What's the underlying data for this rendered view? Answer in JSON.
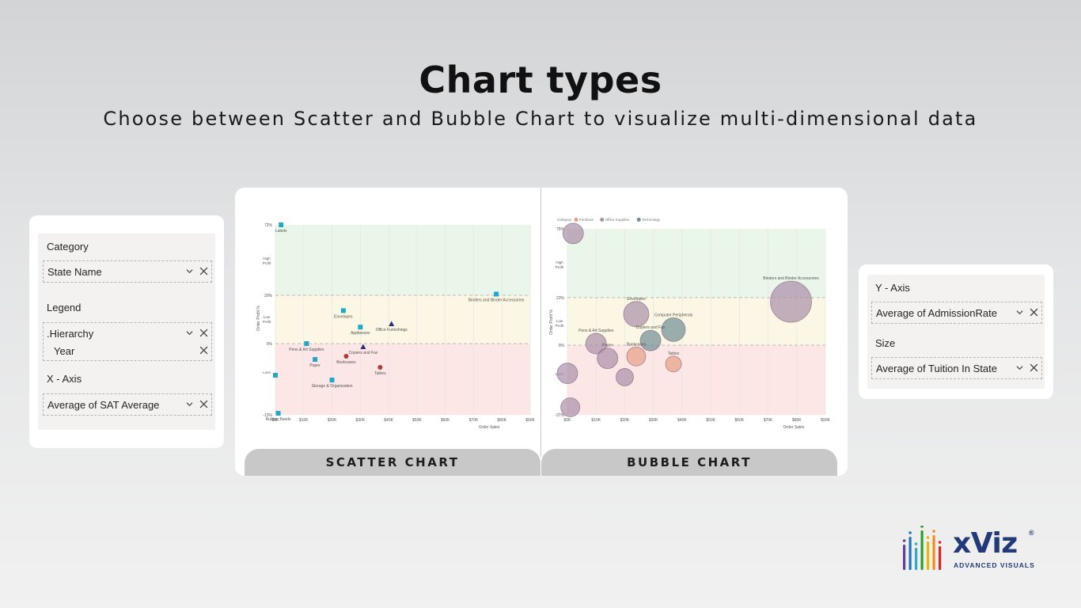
{
  "header": {
    "title": "Chart types",
    "subtitle": "Choose between Scatter and Bubble Chart to visualize multi-dimensional data"
  },
  "left_pane": {
    "category_label": "Category",
    "category_field": "State Name",
    "legend_label": "Legend",
    "legend_fields": [
      ".Hierarchy",
      "Year"
    ],
    "xaxis_label": "X - Axis",
    "xaxis_field": "Average of SAT Average"
  },
  "right_pane": {
    "yaxis_label": "Y - Axis",
    "yaxis_field": "Average of AdmissionRate",
    "size_label": "Size",
    "size_field": "Average of Tuition In State"
  },
  "tabs": {
    "scatter": "SCATTER CHART",
    "bubble": "BUBBLE CHART"
  },
  "logo": {
    "name": "xViz",
    "registered": "®",
    "tagline": "ADVANCED VISUALS",
    "bar_colors": [
      "#6a3d9a",
      "#1f78b4",
      "#33a9c7",
      "#2ca02c",
      "#e6b800",
      "#f08a24",
      "#d62728"
    ]
  },
  "chart_data": [
    {
      "type": "scatter",
      "xlabel": "Order Sales",
      "ylabel": "Order Profit %",
      "x_ticks": [
        "$0K",
        "$10K",
        "$20K",
        "$30K",
        "$40K",
        "$50K",
        "$60K",
        "$70K",
        "$80K",
        "$90K"
      ],
      "y_ticks": [
        "72%",
        "20%",
        "0%",
        "-13%"
      ],
      "bands": [
        "High Profit",
        "Low Profit",
        "Loss"
      ],
      "band_colors": [
        "#eaf6ea",
        "#fbf7e4",
        "#fde6e6"
      ],
      "series": [
        {
          "color": "#1fa8c7",
          "shape": "square",
          "points": [
            {
              "label": "Labels",
              "x": 2,
              "y": 72
            },
            {
              "label": "Envelopes",
              "x": 24,
              "y": 20
            },
            {
              "label": "Appliances",
              "x": 30,
              "y": 10
            },
            {
              "label": "Binders and Binder Accessories",
              "x": 78,
              "y": 30
            },
            {
              "label": "Pens & Art Supplies",
              "x": 11,
              "y": 0
            },
            {
              "label": "Paper",
              "x": 14,
              "y": -10
            },
            {
              "label": "Storage & Organization",
              "x": 20,
              "y": -23
            },
            {
              "label": "",
              "x": 0,
              "y": -20
            },
            {
              "label": "Rubber Bands",
              "x": 1,
              "y": -44
            }
          ]
        },
        {
          "color": "#2b2f7a",
          "shape": "triangle",
          "points": [
            {
              "label": "Copiers and Fax",
              "x": 31,
              "y": -2
            },
            {
              "label": "Office Furnishings",
              "x": 41,
              "y": 12
            }
          ]
        },
        {
          "color": "#b03a3a",
          "shape": "circle",
          "points": [
            {
              "label": "Bookcases",
              "x": 25,
              "y": -8
            },
            {
              "label": "Tables",
              "x": 37,
              "y": -15
            }
          ]
        }
      ]
    },
    {
      "type": "bubble",
      "legend_title": "Category",
      "legend": [
        "Furniture",
        "Office Supplies",
        "Technology"
      ],
      "legend_colors": [
        "#e3a083",
        "#a98ea8",
        "#6f8d96"
      ],
      "xlabel": "Order Sales",
      "ylabel": "Order Profit %",
      "x_ticks": [
        "$0K",
        "$10K",
        "$20K",
        "$30K",
        "$40K",
        "$50K",
        "$60K",
        "$70K",
        "$80K",
        "$90K"
      ],
      "y_ticks": [
        "75%",
        "23%",
        "0%",
        "-37%"
      ],
      "bands": [
        "High Profit",
        "Low Profit",
        "Loss"
      ],
      "bubbles": [
        {
          "label": "Binders and Binder Accessories",
          "x": 78,
          "y": 28,
          "size": 52,
          "category": "Office Supplies"
        },
        {
          "label": "Envelopes",
          "x": 24,
          "y": 20,
          "size": 32,
          "category": "Office Supplies"
        },
        {
          "label": "Computer Peripherals",
          "x": 37,
          "y": 10,
          "size": 30,
          "category": "Technology"
        },
        {
          "label": "Copiers and Fax",
          "x": 29,
          "y": 3,
          "size": 26,
          "category": "Technology"
        },
        {
          "label": "Pens & Art Supplies",
          "x": 10,
          "y": 1,
          "size": 26,
          "category": "Office Supplies"
        },
        {
          "label": "Paper",
          "x": 14,
          "y": -7,
          "size": 26,
          "category": "Office Supplies"
        },
        {
          "label": "Bookcases",
          "x": 24,
          "y": -6,
          "size": 24,
          "category": "Furniture"
        },
        {
          "label": "Tables",
          "x": 37,
          "y": -10,
          "size": 20,
          "category": "Furniture"
        },
        {
          "label": "",
          "x": 2,
          "y": 72,
          "size": 26,
          "category": "Office Supplies"
        },
        {
          "label": "",
          "x": 0,
          "y": -15,
          "size": 26,
          "category": "Office Supplies"
        },
        {
          "label": "",
          "x": 20,
          "y": -17,
          "size": 22,
          "category": "Office Supplies"
        },
        {
          "label": "",
          "x": 1,
          "y": -33,
          "size": 24,
          "category": "Office Supplies"
        }
      ]
    }
  ]
}
